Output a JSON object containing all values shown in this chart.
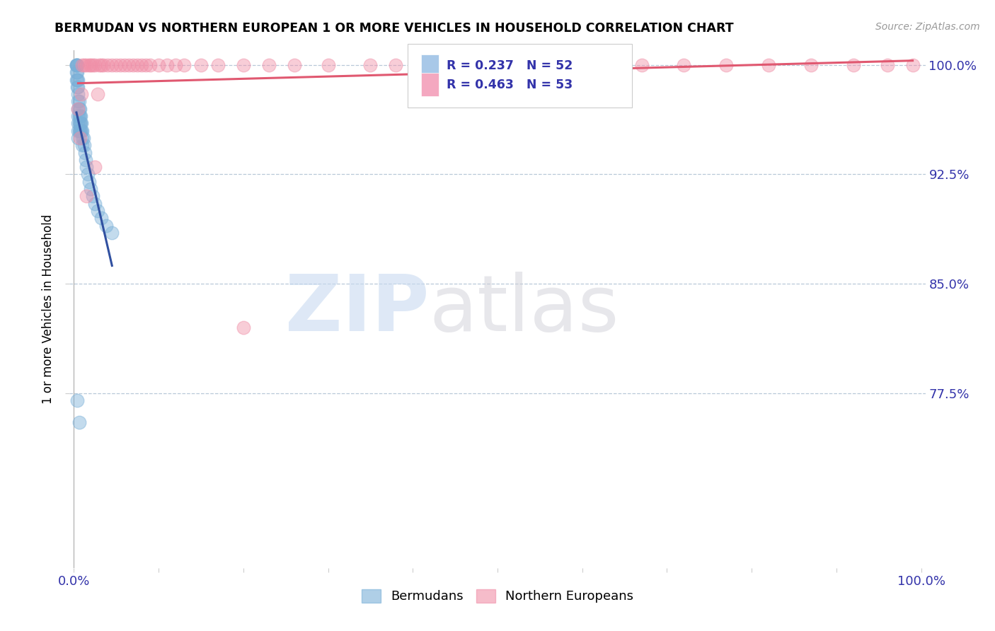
{
  "title": "BERMUDAN VS NORTHERN EUROPEAN 1 OR MORE VEHICLES IN HOUSEHOLD CORRELATION CHART",
  "source": "Source: ZipAtlas.com",
  "ylabel": "1 or more Vehicles in Household",
  "ytick_values": [
    0.775,
    0.85,
    0.925,
    1.0
  ],
  "ytick_labels": [
    "77.5%",
    "85.0%",
    "92.5%",
    "100.0%"
  ],
  "bermudans_color": "#7ab0d8",
  "northern_color": "#f090a8",
  "bermudans_line_color": "#3050a0",
  "northern_line_color": "#e05870",
  "R_bermudans": 0.237,
  "N_bermudans": 52,
  "R_northern": 0.463,
  "N_northern": 53,
  "xlim": [
    0.0,
    1.0
  ],
  "ylim": [
    0.655,
    1.01
  ],
  "bermudans_x": [
    0.003,
    0.003,
    0.003,
    0.003,
    0.003,
    0.004,
    0.004,
    0.004,
    0.004,
    0.004,
    0.005,
    0.005,
    0.005,
    0.005,
    0.005,
    0.005,
    0.005,
    0.005,
    0.005,
    0.006,
    0.006,
    0.006,
    0.006,
    0.006,
    0.007,
    0.007,
    0.007,
    0.007,
    0.008,
    0.008,
    0.008,
    0.009,
    0.009,
    0.01,
    0.01,
    0.01,
    0.011,
    0.012,
    0.013,
    0.014,
    0.015,
    0.016,
    0.018,
    0.02,
    0.022,
    0.025,
    0.028,
    0.032,
    0.038,
    0.045,
    0.004,
    0.006
  ],
  "bermudans_y": [
    1.0,
    1.0,
    1.0,
    0.995,
    0.99,
    1.0,
    1.0,
    0.995,
    0.99,
    0.985,
    0.99,
    0.985,
    0.98,
    0.975,
    0.97,
    0.965,
    0.96,
    0.955,
    0.95,
    0.975,
    0.97,
    0.965,
    0.96,
    0.955,
    0.97,
    0.965,
    0.96,
    0.955,
    0.965,
    0.96,
    0.955,
    0.96,
    0.955,
    0.955,
    0.95,
    0.945,
    0.95,
    0.945,
    0.94,
    0.935,
    0.93,
    0.925,
    0.92,
    0.915,
    0.91,
    0.905,
    0.9,
    0.895,
    0.89,
    0.885,
    0.77,
    0.755
  ],
  "northern_x": [
    0.005,
    0.007,
    0.009,
    0.01,
    0.012,
    0.015,
    0.018,
    0.02,
    0.022,
    0.025,
    0.028,
    0.03,
    0.032,
    0.035,
    0.04,
    0.045,
    0.05,
    0.055,
    0.06,
    0.065,
    0.07,
    0.075,
    0.08,
    0.085,
    0.09,
    0.1,
    0.11,
    0.12,
    0.13,
    0.15,
    0.17,
    0.2,
    0.23,
    0.26,
    0.3,
    0.35,
    0.38,
    0.42,
    0.47,
    0.52,
    0.57,
    0.62,
    0.67,
    0.72,
    0.77,
    0.82,
    0.87,
    0.92,
    0.96,
    0.99,
    0.025,
    0.015,
    0.2
  ],
  "northern_y": [
    0.97,
    0.95,
    0.98,
    1.0,
    1.0,
    1.0,
    1.0,
    1.0,
    1.0,
    1.0,
    0.98,
    1.0,
    1.0,
    1.0,
    1.0,
    1.0,
    1.0,
    1.0,
    1.0,
    1.0,
    1.0,
    1.0,
    1.0,
    1.0,
    1.0,
    1.0,
    1.0,
    1.0,
    1.0,
    1.0,
    1.0,
    1.0,
    1.0,
    1.0,
    1.0,
    1.0,
    1.0,
    1.0,
    1.0,
    1.0,
    1.0,
    1.0,
    1.0,
    1.0,
    1.0,
    1.0,
    1.0,
    1.0,
    1.0,
    1.0,
    0.93,
    0.91,
    0.82
  ]
}
